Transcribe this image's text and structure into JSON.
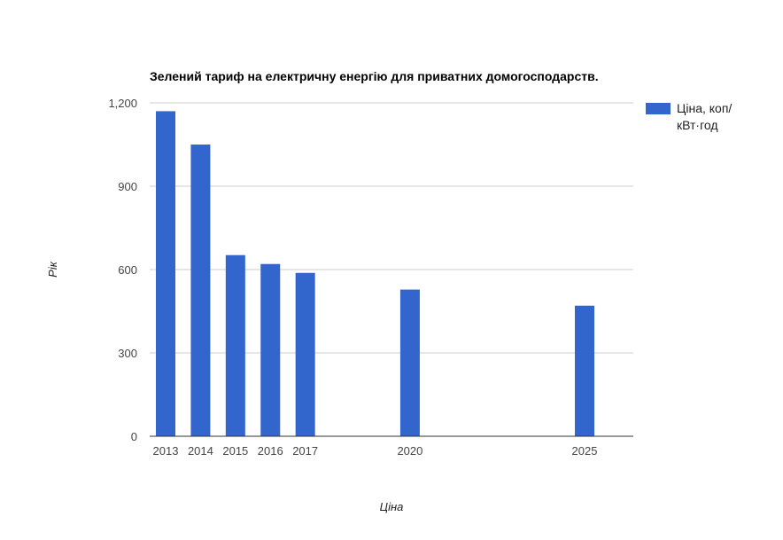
{
  "chart_data": {
    "type": "bar",
    "title": "Зелений тариф на електричну енергію для приватних домогосподарств.",
    "xlabel": "Ціна",
    "ylabel": "Рік",
    "categories": [
      "2013",
      "2014",
      "2015",
      "2016",
      "2017",
      "2020",
      "2025"
    ],
    "x_positions": [
      2013,
      2014,
      2015,
      2016,
      2017,
      2020,
      2025
    ],
    "series": [
      {
        "name": "Ціна, коп/кВт·год",
        "name_lines": [
          "Ціна, коп/",
          "кВт·год"
        ],
        "color": "#3366cc",
        "values": [
          1170,
          1050,
          652,
          620,
          588,
          528,
          470
        ]
      }
    ],
    "ylim": [
      0,
      1200
    ],
    "yticks": [
      0,
      300,
      600,
      900,
      1200
    ],
    "ytick_labels": [
      "0",
      "300",
      "600",
      "900",
      "1,200"
    ],
    "grid": true,
    "legend_position": "right"
  }
}
